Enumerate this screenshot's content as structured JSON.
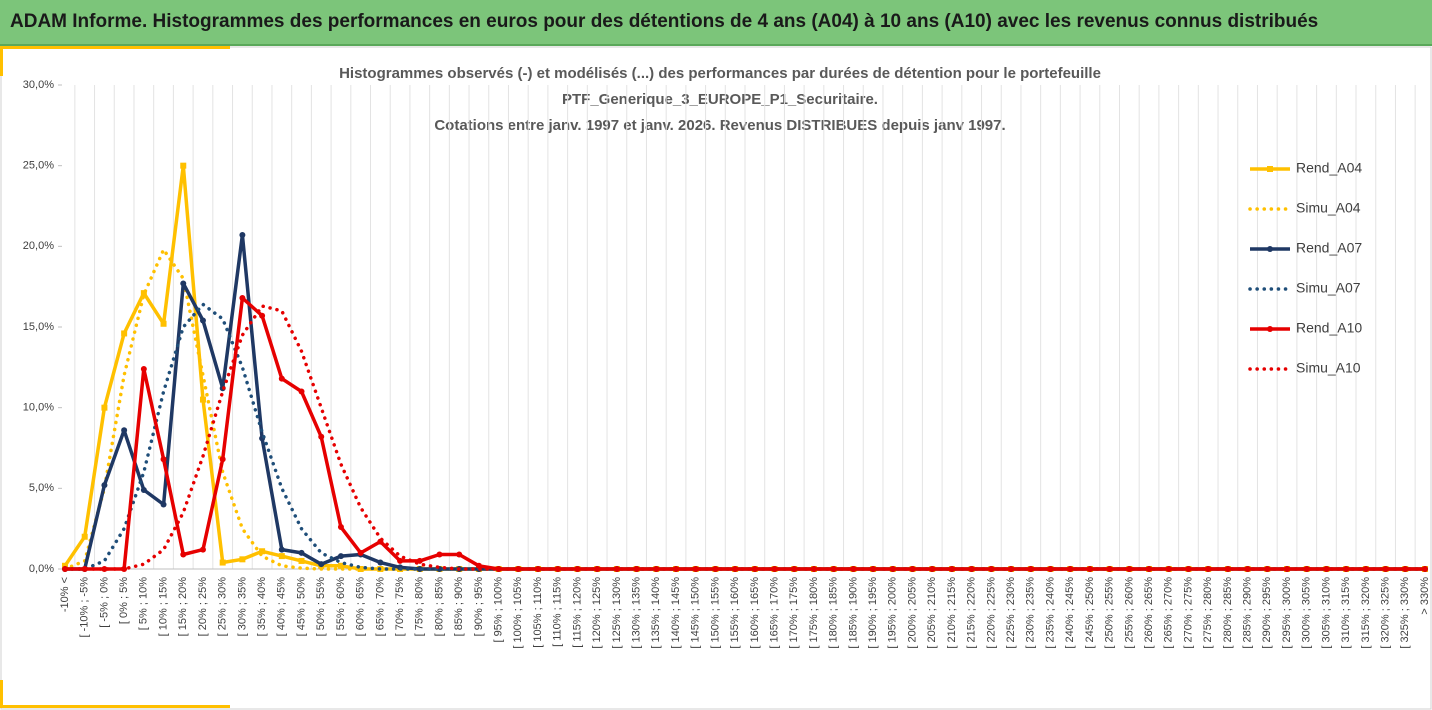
{
  "header": {
    "title": "ADAM Informe. Histogrammes des performances en euros pour des détentions de 4 ans (A04) à 10 ans (A10) avec les revenus connus distribués"
  },
  "chart_data": {
    "type": "line",
    "title": [
      "Histogrammes observés (-) et modélisés (...) des performances par durées de détention pour le portefeuille",
      "PTF_Generique_3_EUROPE_P1_Securitaire.",
      "Cotations entre janv. 1997 et janv. 2026. Revenus DISTRIBUES depuis janv 1997."
    ],
    "categories": [
      "-10% <",
      "[ -10% ; -5%",
      "[ -5% ; 0%",
      "[ 0% ; 5%",
      "[ 5% ; 10%",
      "[ 10% ; 15%",
      "[ 15% ; 20%",
      "[ 20% ; 25%",
      "[ 25% ; 30%",
      "[ 30% ; 35%",
      "[ 35% ; 40%",
      "[ 40% ; 45%",
      "[ 45% ; 50%",
      "[ 50% ; 55%",
      "[ 55% ; 60%",
      "[ 60% ; 65%",
      "[ 65% ; 70%",
      "[ 70% ; 75%",
      "[ 75% ; 80%",
      "[ 80% ; 85%",
      "[ 85% ; 90%",
      "[ 90% ; 95%",
      "[ 95% ; 100%",
      "[ 100% ; 105%",
      "[ 105% ; 110%",
      "[ 110% ; 115%",
      "[ 115% ; 120%",
      "[ 120% ; 125%",
      "[ 125% ; 130%",
      "[ 130% ; 135%",
      "[ 135% ; 140%",
      "[ 140% ; 145%",
      "[ 145% ; 150%",
      "[ 150% ; 155%",
      "[ 155% ; 160%",
      "[ 160% ; 165%",
      "[ 165% ; 170%",
      "[ 170% ; 175%",
      "[ 175% ; 180%",
      "[ 180% ; 185%",
      "[ 185% ; 190%",
      "[ 190% ; 195%",
      "[ 195% ; 200%",
      "[ 200% ; 205%",
      "[ 205% ; 210%",
      "[ 210% ; 215%",
      "[ 215% ; 220%",
      "[ 220% ; 225%",
      "[ 225% ; 230%",
      "[ 230% ; 235%",
      "[ 235% ; 240%",
      "[ 240% ; 245%",
      "[ 245% ; 250%",
      "[ 250% ; 255%",
      "[ 255% ; 260%",
      "[ 260% ; 265%",
      "[ 265% ; 270%",
      "[ 270% ; 275%",
      "[ 275% ; 280%",
      "[ 280% ; 285%",
      "[ 285% ; 290%",
      "[ 290% ; 295%",
      "[ 295% ; 300%",
      "[ 300% ; 305%",
      "[ 305% ; 310%",
      "[ 310% ; 315%",
      "[ 315% ; 320%",
      "[ 320% ; 325%",
      "[ 325% ; 330%",
      "> 330%"
    ],
    "series": [
      {
        "name": "Rend_A04",
        "color": "#ffc000",
        "marker": "square",
        "dashed": false,
        "values": [
          0.2,
          2.0,
          10.0,
          14.6,
          17.1,
          15.2,
          25.0,
          10.5,
          0.4,
          0.6,
          1.1,
          0.8,
          0.5,
          0.2,
          0.2,
          0,
          0,
          0,
          0,
          0,
          0,
          0,
          0,
          0,
          0,
          0,
          0,
          0,
          0,
          0,
          0,
          0,
          0,
          0,
          0,
          0,
          0,
          0,
          0,
          0,
          0,
          0,
          0,
          0,
          0,
          0,
          0,
          0,
          0,
          0,
          0,
          0,
          0,
          0,
          0,
          0,
          0,
          0,
          0,
          0,
          0,
          0,
          0,
          0,
          0,
          0,
          0,
          0,
          0,
          0
        ]
      },
      {
        "name": "Simu_A04",
        "color": "#ffc000",
        "marker": "none",
        "dashed": true,
        "values": [
          0,
          0.5,
          5.0,
          12.0,
          17.0,
          19.8,
          18.0,
          12.0,
          6.0,
          2.5,
          0.8,
          0.2,
          0.05,
          0,
          0,
          0,
          0,
          0,
          0,
          0,
          0,
          0,
          0,
          0,
          0,
          0,
          0,
          0,
          0,
          0,
          0,
          0,
          0,
          0,
          0,
          0,
          0,
          0,
          0,
          0,
          0,
          0,
          0,
          0,
          0,
          0,
          0,
          0,
          0,
          0,
          0,
          0,
          0,
          0,
          0,
          0,
          0,
          0,
          0,
          0,
          0,
          0,
          0,
          0,
          0,
          0,
          0,
          0,
          0,
          0
        ]
      },
      {
        "name": "Rend_A07",
        "color": "#1f3864",
        "marker": "circle",
        "dashed": false,
        "values": [
          0,
          0,
          5.2,
          8.6,
          4.9,
          4.0,
          17.7,
          15.4,
          11.2,
          20.7,
          8.1,
          1.2,
          1.0,
          0.3,
          0.8,
          0.9,
          0.4,
          0.1,
          0,
          0,
          0,
          0,
          0,
          0,
          0,
          0,
          0,
          0,
          0,
          0,
          0,
          0,
          0,
          0,
          0,
          0,
          0,
          0,
          0,
          0,
          0,
          0,
          0,
          0,
          0,
          0,
          0,
          0,
          0,
          0,
          0,
          0,
          0,
          0,
          0,
          0,
          0,
          0,
          0,
          0,
          0,
          0,
          0,
          0,
          0,
          0,
          0,
          0,
          0,
          0
        ]
      },
      {
        "name": "Simu_A07",
        "color": "#1f4e79",
        "marker": "none",
        "dashed": true,
        "values": [
          0,
          0,
          0.5,
          2.5,
          6.0,
          11.0,
          15.0,
          16.4,
          15.5,
          12.5,
          8.5,
          5.0,
          2.5,
          1.0,
          0.4,
          0.1,
          0,
          0,
          0,
          0,
          0,
          0,
          0,
          0,
          0,
          0,
          0,
          0,
          0,
          0,
          0,
          0,
          0,
          0,
          0,
          0,
          0,
          0,
          0,
          0,
          0,
          0,
          0,
          0,
          0,
          0,
          0,
          0,
          0,
          0,
          0,
          0,
          0,
          0,
          0,
          0,
          0,
          0,
          0,
          0,
          0,
          0,
          0,
          0,
          0,
          0,
          0,
          0,
          0,
          0
        ]
      },
      {
        "name": "Rend_A10",
        "color": "#e60000",
        "marker": "circle",
        "dashed": false,
        "values": [
          0,
          0,
          0,
          0,
          12.4,
          6.8,
          0.9,
          1.2,
          6.8,
          16.8,
          15.7,
          11.8,
          11.0,
          8.2,
          2.6,
          1.0,
          1.7,
          0.5,
          0.5,
          0.9,
          0.9,
          0.2,
          0,
          0,
          0,
          0,
          0,
          0,
          0,
          0,
          0,
          0,
          0,
          0,
          0,
          0,
          0,
          0,
          0,
          0,
          0,
          0,
          0,
          0,
          0,
          0,
          0,
          0,
          0,
          0,
          0,
          0,
          0,
          0,
          0,
          0,
          0,
          0,
          0,
          0,
          0,
          0,
          0,
          0,
          0,
          0,
          0,
          0,
          0,
          0
        ]
      },
      {
        "name": "Simu_A10",
        "color": "#e60000",
        "marker": "none",
        "dashed": true,
        "values": [
          0,
          0,
          0,
          0,
          0.3,
          1.2,
          3.5,
          7.0,
          11.0,
          14.5,
          16.3,
          16.0,
          13.5,
          10.0,
          6.5,
          3.8,
          1.9,
          0.8,
          0.3,
          0.1,
          0,
          0,
          0,
          0,
          0,
          0,
          0,
          0,
          0,
          0,
          0,
          0,
          0,
          0,
          0,
          0,
          0,
          0,
          0,
          0,
          0,
          0,
          0,
          0,
          0,
          0,
          0,
          0,
          0,
          0,
          0,
          0,
          0,
          0,
          0,
          0,
          0,
          0,
          0,
          0,
          0,
          0,
          0,
          0,
          0,
          0,
          0,
          0,
          0,
          0
        ]
      }
    ],
    "ylim": [
      0,
      30
    ],
    "yticks": [
      {
        "value": 0,
        "label": "0,0%"
      },
      {
        "value": 5,
        "label": "5,0%"
      },
      {
        "value": 10,
        "label": "10,0%"
      },
      {
        "value": 15,
        "label": "15,0%"
      },
      {
        "value": 20,
        "label": "20,0%"
      },
      {
        "value": 25,
        "label": "25,0%"
      },
      {
        "value": 30,
        "label": "30,0%"
      }
    ],
    "grid": "x",
    "legend": "right"
  }
}
